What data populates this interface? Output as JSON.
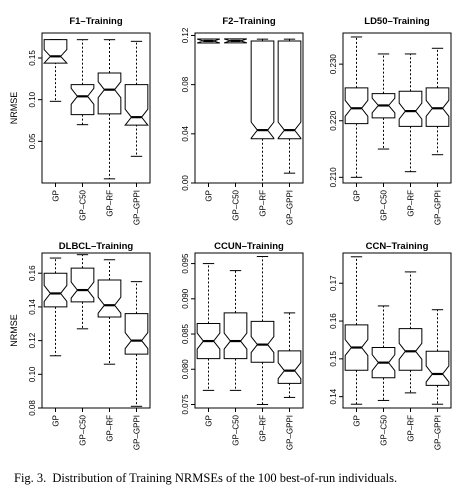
{
  "caption": {
    "label": "Fig. 3.",
    "text": "Distribution of Training NRMSEs of the 100 best-of-run individuals."
  },
  "chart_data": [
    {
      "type": "box",
      "title": "F1–Training",
      "ylabel": "NRMSE",
      "categories": [
        "GP",
        "GP–C50",
        "GP–RF",
        "GP–GPPI"
      ],
      "ylim": [
        0.0,
        0.18
      ],
      "yticks": [
        "0.05",
        "0.10",
        "0.15"
      ],
      "notched": true,
      "boxes": [
        {
          "min": 0.098,
          "q1": 0.145,
          "median": 0.152,
          "q3": 0.172,
          "max": 0.172
        },
        {
          "min": 0.07,
          "q1": 0.082,
          "median": 0.104,
          "q3": 0.118,
          "max": 0.172
        },
        {
          "min": 0.005,
          "q1": 0.083,
          "median": 0.112,
          "q3": 0.132,
          "max": 0.172
        },
        {
          "min": 0.032,
          "q1": 0.075,
          "median": 0.079,
          "q3": 0.118,
          "max": 0.17
        }
      ]
    },
    {
      "type": "box",
      "title": "F2–Training",
      "ylabel": "",
      "categories": [
        "GP",
        "GP–C50",
        "GP–RF",
        "GP–GPPI"
      ],
      "ylim": [
        0.0,
        0.122
      ],
      "yticks": [
        "0.00",
        "0.04",
        "0.08",
        "0.12"
      ],
      "notched": true,
      "boxes": [
        {
          "min": 0.114,
          "q1": 0.1145,
          "median": 0.1155,
          "q3": 0.1162,
          "max": 0.117
        },
        {
          "min": 0.115,
          "q1": 0.1152,
          "median": 0.1156,
          "q3": 0.116,
          "max": 0.1163
        },
        {
          "min": 0.0,
          "q1": 0.036,
          "median": 0.043,
          "q3": 0.1155,
          "max": 0.117
        },
        {
          "min": 0.008,
          "q1": 0.036,
          "median": 0.043,
          "q3": 0.1155,
          "max": 0.117
        }
      ]
    },
    {
      "type": "box",
      "title": "LD50–Training",
      "ylabel": "",
      "categories": [
        "GP",
        "GP–C50",
        "GP–RF",
        "GP–GPPI"
      ],
      "ylim": [
        0.209,
        0.2355
      ],
      "yticks": [
        "0.210",
        "0.220",
        "0.230"
      ],
      "notched": true,
      "boxes": [
        {
          "min": 0.21,
          "q1": 0.2195,
          "median": 0.2222,
          "q3": 0.2258,
          "max": 0.2348
        },
        {
          "min": 0.215,
          "q1": 0.2205,
          "median": 0.2227,
          "q3": 0.2248,
          "max": 0.2318
        },
        {
          "min": 0.211,
          "q1": 0.219,
          "median": 0.2217,
          "q3": 0.2252,
          "max": 0.2318
        },
        {
          "min": 0.214,
          "q1": 0.219,
          "median": 0.2222,
          "q3": 0.2258,
          "max": 0.2328
        }
      ]
    },
    {
      "type": "box",
      "title": "DLBCL–Training",
      "ylabel": "NRMSE",
      "categories": [
        "GP",
        "GP–C50",
        "GP–RF",
        "GP–GPPI"
      ],
      "ylim": [
        0.08,
        0.172
      ],
      "yticks": [
        "0.08",
        "0.10",
        "0.12",
        "0.14",
        "0.16"
      ],
      "notched": true,
      "boxes": [
        {
          "min": 0.111,
          "q1": 0.14,
          "median": 0.148,
          "q3": 0.16,
          "max": 0.169
        },
        {
          "min": 0.127,
          "q1": 0.143,
          "median": 0.15,
          "q3": 0.163,
          "max": 0.171
        },
        {
          "min": 0.106,
          "q1": 0.134,
          "median": 0.141,
          "q3": 0.156,
          "max": 0.168
        },
        {
          "min": 0.081,
          "q1": 0.112,
          "median": 0.12,
          "q3": 0.136,
          "max": 0.155
        }
      ]
    },
    {
      "type": "box",
      "title": "CCUN–Training",
      "ylabel": "",
      "categories": [
        "GP",
        "GP–C50",
        "GP–RF",
        "GP–GPPI"
      ],
      "ylim": [
        0.0745,
        0.0965
      ],
      "yticks": [
        "0.075",
        "0.080",
        "0.085",
        "0.090",
        "0.095"
      ],
      "notched": true,
      "boxes": [
        {
          "min": 0.077,
          "q1": 0.0815,
          "median": 0.084,
          "q3": 0.0865,
          "max": 0.095
        },
        {
          "min": 0.077,
          "q1": 0.0815,
          "median": 0.084,
          "q3": 0.088,
          "max": 0.094
        },
        {
          "min": 0.075,
          "q1": 0.081,
          "median": 0.0835,
          "q3": 0.0868,
          "max": 0.096
        },
        {
          "min": 0.076,
          "q1": 0.078,
          "median": 0.0798,
          "q3": 0.0826,
          "max": 0.088
        }
      ]
    },
    {
      "type": "box",
      "title": "CCN–Training",
      "ylabel": "",
      "categories": [
        "GP",
        "GP–C50",
        "GP–RF",
        "GP–GPPI"
      ],
      "ylim": [
        0.137,
        0.178
      ],
      "yticks": [
        "0.14",
        "0.15",
        "0.16",
        "0.17"
      ],
      "notched": true,
      "boxes": [
        {
          "min": 0.138,
          "q1": 0.147,
          "median": 0.153,
          "q3": 0.159,
          "max": 0.177
        },
        {
          "min": 0.139,
          "q1": 0.145,
          "median": 0.149,
          "q3": 0.153,
          "max": 0.164
        },
        {
          "min": 0.141,
          "q1": 0.147,
          "median": 0.152,
          "q3": 0.158,
          "max": 0.173
        },
        {
          "min": 0.138,
          "q1": 0.143,
          "median": 0.146,
          "q3": 0.152,
          "max": 0.163
        }
      ]
    }
  ]
}
